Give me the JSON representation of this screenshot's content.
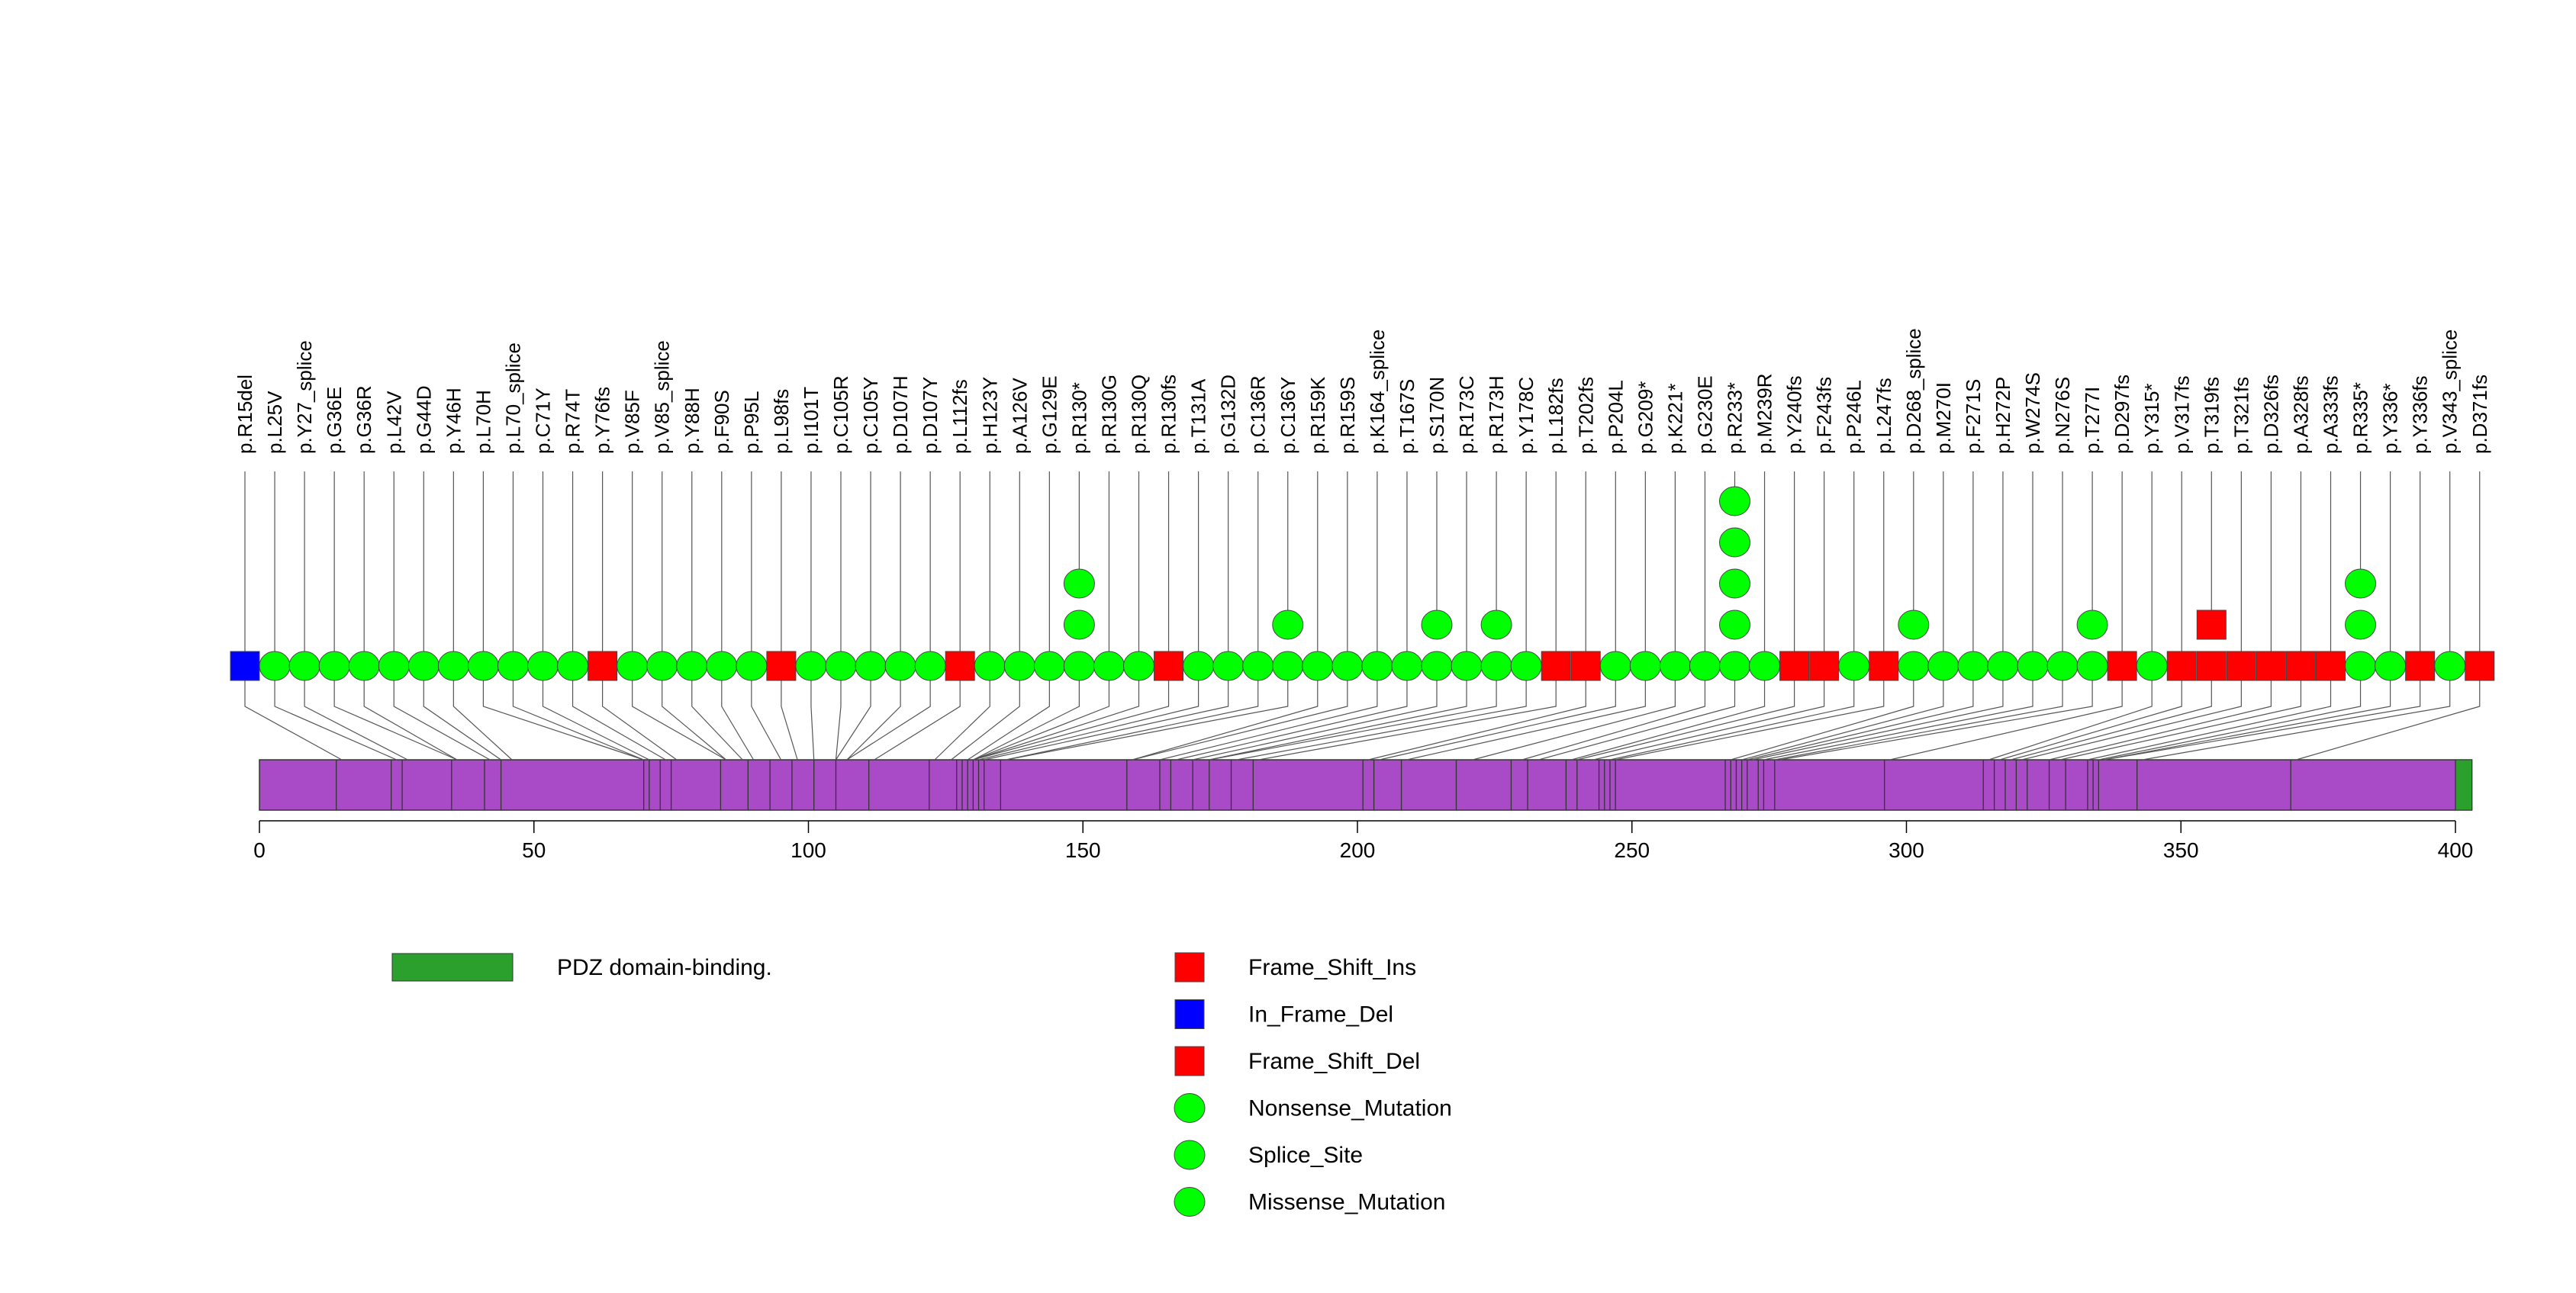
{
  "chart_data": {
    "type": "lollipop",
    "protein_length": 403,
    "axis": {
      "range": [
        0,
        403
      ],
      "ticks": [
        0,
        50,
        100,
        150,
        200,
        250,
        300,
        350,
        400
      ],
      "tick_labels": [
        "0",
        "50",
        "100",
        "150",
        "200",
        "250",
        "300",
        "350",
        "400"
      ]
    },
    "domains": [
      {
        "name": "PDZ domain-binding.",
        "start": 400,
        "end": 403,
        "color": "#2CA02C"
      }
    ],
    "protein_color": "#A94BC6",
    "exon_boundaries": [
      14,
      24,
      26,
      35,
      41,
      44,
      70,
      71,
      73,
      75,
      84,
      89,
      93,
      97,
      101,
      105,
      111,
      122,
      127,
      128,
      129,
      130,
      131,
      132,
      135,
      158,
      164,
      166,
      170,
      173,
      177,
      181,
      201,
      203,
      208,
      218,
      228,
      231,
      238,
      240,
      244,
      245,
      246,
      247,
      267,
      268,
      269,
      270,
      271,
      273,
      274,
      276,
      296,
      314,
      316,
      318,
      320,
      322,
      326,
      329,
      333,
      334,
      335,
      342,
      370,
      400
    ],
    "mutations": [
      {
        "label": "p.R15del",
        "pos": 15,
        "type": "In_Frame_Del",
        "count": 1
      },
      {
        "label": "p.L25V",
        "pos": 25,
        "type": "Missense_Mutation",
        "count": 1
      },
      {
        "label": "p.Y27_splice",
        "pos": 27,
        "type": "Splice_Site",
        "count": 1
      },
      {
        "label": "p.G36E",
        "pos": 36,
        "type": "Missense_Mutation",
        "count": 1
      },
      {
        "label": "p.G36R",
        "pos": 36,
        "type": "Missense_Mutation",
        "count": 1
      },
      {
        "label": "p.L42V",
        "pos": 42,
        "type": "Missense_Mutation",
        "count": 1
      },
      {
        "label": "p.G44D",
        "pos": 44,
        "type": "Missense_Mutation",
        "count": 1
      },
      {
        "label": "p.Y46H",
        "pos": 46,
        "type": "Missense_Mutation",
        "count": 1
      },
      {
        "label": "p.L70H",
        "pos": 70,
        "type": "Missense_Mutation",
        "count": 1
      },
      {
        "label": "p.L70_splice",
        "pos": 70,
        "type": "Splice_Site",
        "count": 1
      },
      {
        "label": "p.C71Y",
        "pos": 71,
        "type": "Missense_Mutation",
        "count": 1
      },
      {
        "label": "p.R74T",
        "pos": 74,
        "type": "Missense_Mutation",
        "count": 1
      },
      {
        "label": "p.Y76fs",
        "pos": 76,
        "type": "Frame_Shift_Del",
        "count": 1
      },
      {
        "label": "p.V85F",
        "pos": 85,
        "type": "Missense_Mutation",
        "count": 1
      },
      {
        "label": "p.V85_splice",
        "pos": 85,
        "type": "Splice_Site",
        "count": 1
      },
      {
        "label": "p.Y88H",
        "pos": 88,
        "type": "Missense_Mutation",
        "count": 1
      },
      {
        "label": "p.F90S",
        "pos": 90,
        "type": "Missense_Mutation",
        "count": 1
      },
      {
        "label": "p.P95L",
        "pos": 95,
        "type": "Missense_Mutation",
        "count": 1
      },
      {
        "label": "p.L98fs",
        "pos": 98,
        "type": "Frame_Shift_Del",
        "count": 1
      },
      {
        "label": "p.I101T",
        "pos": 101,
        "type": "Missense_Mutation",
        "count": 1
      },
      {
        "label": "p.C105R",
        "pos": 105,
        "type": "Missense_Mutation",
        "count": 1
      },
      {
        "label": "p.C105Y",
        "pos": 105,
        "type": "Missense_Mutation",
        "count": 1
      },
      {
        "label": "p.D107H",
        "pos": 107,
        "type": "Missense_Mutation",
        "count": 1
      },
      {
        "label": "p.D107Y",
        "pos": 107,
        "type": "Missense_Mutation",
        "count": 1
      },
      {
        "label": "p.L112fs",
        "pos": 112,
        "type": "Frame_Shift_Del",
        "count": 1
      },
      {
        "label": "p.H123Y",
        "pos": 123,
        "type": "Missense_Mutation",
        "count": 1
      },
      {
        "label": "p.A126V",
        "pos": 126,
        "type": "Missense_Mutation",
        "count": 1
      },
      {
        "label": "p.G129E",
        "pos": 129,
        "type": "Missense_Mutation",
        "count": 1
      },
      {
        "label": "p.R130*",
        "pos": 130,
        "type": "Nonsense_Mutation",
        "count": 3
      },
      {
        "label": "p.R130G",
        "pos": 130,
        "type": "Missense_Mutation",
        "count": 1
      },
      {
        "label": "p.R130Q",
        "pos": 130,
        "type": "Missense_Mutation",
        "count": 1
      },
      {
        "label": "p.R130fs",
        "pos": 130,
        "type": "Frame_Shift_Del",
        "count": 1
      },
      {
        "label": "p.T131A",
        "pos": 131,
        "type": "Missense_Mutation",
        "count": 1
      },
      {
        "label": "p.G132D",
        "pos": 132,
        "type": "Missense_Mutation",
        "count": 1
      },
      {
        "label": "p.C136R",
        "pos": 136,
        "type": "Missense_Mutation",
        "count": 1
      },
      {
        "label": "p.C136Y",
        "pos": 136,
        "type": "Missense_Mutation",
        "count": 2
      },
      {
        "label": "p.R159K",
        "pos": 159,
        "type": "Missense_Mutation",
        "count": 1
      },
      {
        "label": "p.R159S",
        "pos": 159,
        "type": "Missense_Mutation",
        "count": 1
      },
      {
        "label": "p.K164_splice",
        "pos": 164,
        "type": "Splice_Site",
        "count": 1
      },
      {
        "label": "p.T167S",
        "pos": 167,
        "type": "Missense_Mutation",
        "count": 1
      },
      {
        "label": "p.S170N",
        "pos": 170,
        "type": "Missense_Mutation",
        "count": 2
      },
      {
        "label": "p.R173C",
        "pos": 173,
        "type": "Missense_Mutation",
        "count": 1
      },
      {
        "label": "p.R173H",
        "pos": 173,
        "type": "Missense_Mutation",
        "count": 2
      },
      {
        "label": "p.Y178C",
        "pos": 178,
        "type": "Missense_Mutation",
        "count": 1
      },
      {
        "label": "p.L182fs",
        "pos": 182,
        "type": "Frame_Shift_Del",
        "count": 1
      },
      {
        "label": "p.T202fs",
        "pos": 202,
        "type": "Frame_Shift_Del",
        "count": 1
      },
      {
        "label": "p.P204L",
        "pos": 204,
        "type": "Missense_Mutation",
        "count": 1
      },
      {
        "label": "p.G209*",
        "pos": 209,
        "type": "Nonsense_Mutation",
        "count": 1
      },
      {
        "label": "p.K221*",
        "pos": 221,
        "type": "Nonsense_Mutation",
        "count": 1
      },
      {
        "label": "p.G230E",
        "pos": 230,
        "type": "Missense_Mutation",
        "count": 1
      },
      {
        "label": "p.R233*",
        "pos": 233,
        "type": "Nonsense_Mutation",
        "count": 5
      },
      {
        "label": "p.M239R",
        "pos": 239,
        "type": "Missense_Mutation",
        "count": 1
      },
      {
        "label": "p.Y240fs",
        "pos": 240,
        "type": "Frame_Shift_Del",
        "count": 1
      },
      {
        "label": "p.F243fs",
        "pos": 243,
        "type": "Frame_Shift_Del",
        "count": 1
      },
      {
        "label": "p.P246L",
        "pos": 246,
        "type": "Missense_Mutation",
        "count": 1
      },
      {
        "label": "p.L247fs",
        "pos": 247,
        "type": "Frame_Shift_Del",
        "count": 1
      },
      {
        "label": "p.D268_splice",
        "pos": 268,
        "type": "Splice_Site",
        "count": 2
      },
      {
        "label": "p.M270I",
        "pos": 270,
        "type": "Missense_Mutation",
        "count": 1
      },
      {
        "label": "p.F271S",
        "pos": 271,
        "type": "Missense_Mutation",
        "count": 1
      },
      {
        "label": "p.H272P",
        "pos": 272,
        "type": "Missense_Mutation",
        "count": 1
      },
      {
        "label": "p.W274S",
        "pos": 274,
        "type": "Missense_Mutation",
        "count": 1
      },
      {
        "label": "p.N276S",
        "pos": 276,
        "type": "Missense_Mutation",
        "count": 1
      },
      {
        "label": "p.T277I",
        "pos": 277,
        "type": "Missense_Mutation",
        "count": 2
      },
      {
        "label": "p.D297fs",
        "pos": 297,
        "type": "Frame_Shift_Del",
        "count": 1
      },
      {
        "label": "p.Y315*",
        "pos": 315,
        "type": "Nonsense_Mutation",
        "count": 1
      },
      {
        "label": "p.V317fs",
        "pos": 317,
        "type": "Frame_Shift_Del",
        "count": 1
      },
      {
        "label": "p.T319fs",
        "pos": 319,
        "type": "Frame_Shift_Ins",
        "count": 2
      },
      {
        "label": "p.T321fs",
        "pos": 321,
        "type": "Frame_Shift_Del",
        "count": 1
      },
      {
        "label": "p.D326fs",
        "pos": 326,
        "type": "Frame_Shift_Del",
        "count": 1
      },
      {
        "label": "p.A328fs",
        "pos": 328,
        "type": "Frame_Shift_Del",
        "count": 1
      },
      {
        "label": "p.A333fs",
        "pos": 333,
        "type": "Frame_Shift_Del",
        "count": 1
      },
      {
        "label": "p.R335*",
        "pos": 335,
        "type": "Nonsense_Mutation",
        "count": 3
      },
      {
        "label": "p.Y336*",
        "pos": 336,
        "type": "Nonsense_Mutation",
        "count": 1
      },
      {
        "label": "p.Y336fs",
        "pos": 336,
        "type": "Frame_Shift_Del",
        "count": 1
      },
      {
        "label": "p.V343_splice",
        "pos": 343,
        "type": "Splice_Site",
        "count": 1
      },
      {
        "label": "p.D371fs",
        "pos": 371,
        "type": "Frame_Shift_Del",
        "count": 1
      }
    ],
    "legend_domains": [
      {
        "label": "PDZ domain-binding.",
        "color": "#2CA02C"
      }
    ],
    "legend_types": [
      {
        "label": "Frame_Shift_Ins",
        "shape": "square",
        "color": "#FF0000"
      },
      {
        "label": "In_Frame_Del",
        "shape": "square",
        "color": "#0000FF"
      },
      {
        "label": "Frame_Shift_Del",
        "shape": "square",
        "color": "#FF0000"
      },
      {
        "label": "Nonsense_Mutation",
        "shape": "circle",
        "color": "#00FF00"
      },
      {
        "label": "Splice_Site",
        "shape": "circle",
        "color": "#00FF00"
      },
      {
        "label": "Missense_Mutation",
        "shape": "circle",
        "color": "#00FF00"
      }
    ]
  }
}
